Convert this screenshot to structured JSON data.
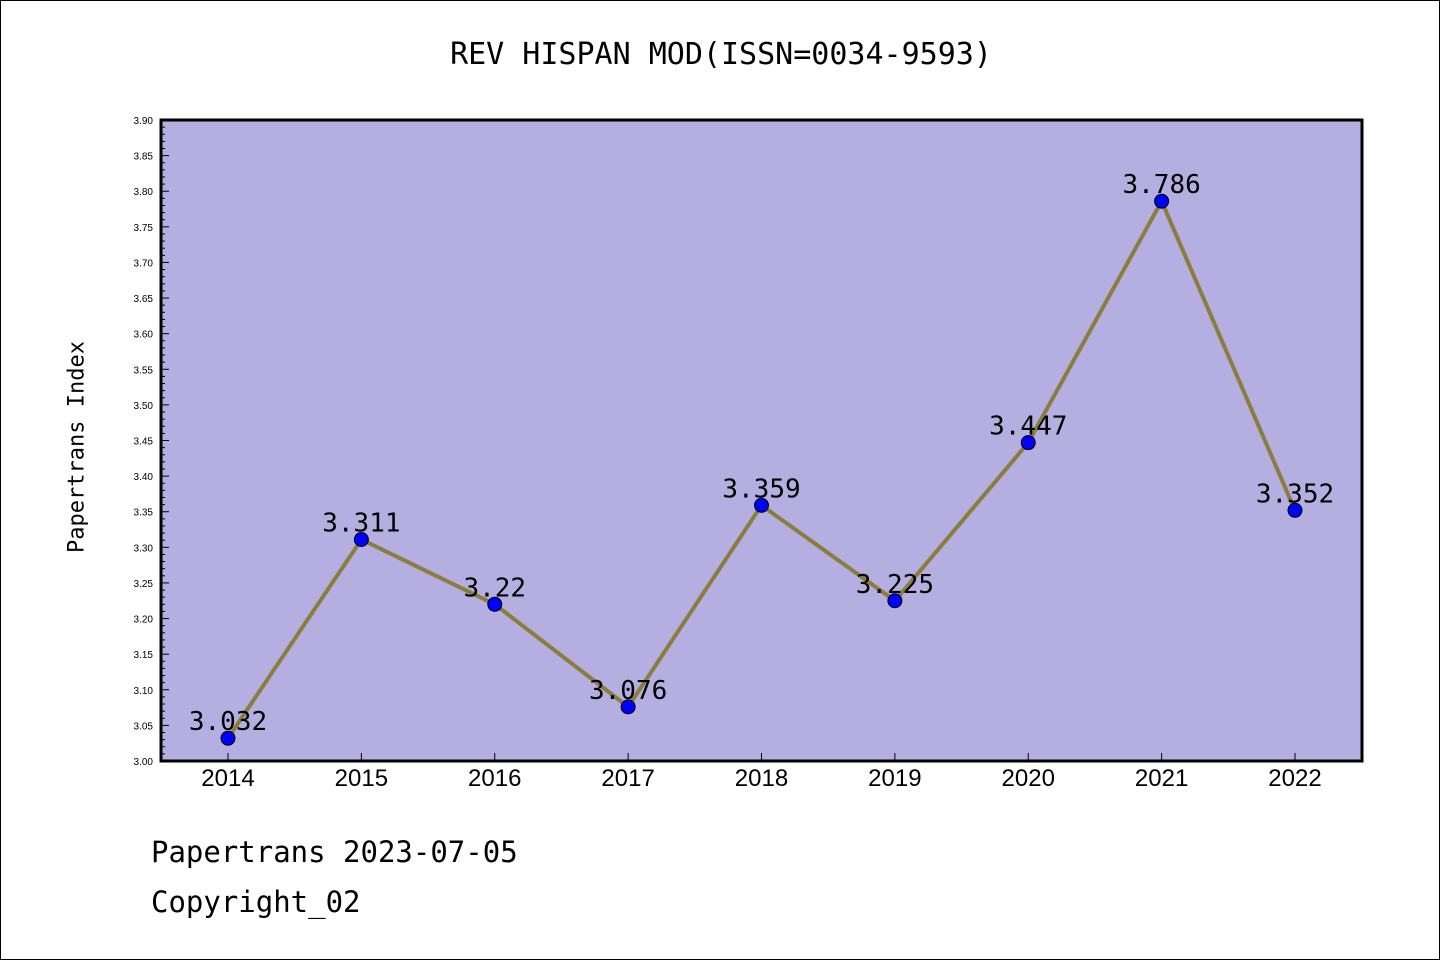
{
  "colors": {
    "plot_background": "#b5aee1",
    "line": "#8b7d3c",
    "marker": "#0000ff",
    "frame": "#000000"
  },
  "chart_data": {
    "type": "line",
    "title": "REV HISPAN MOD(ISSN=0034-9593)",
    "xlabel": "",
    "ylabel": "Papertrans Index",
    "categories": [
      "2014",
      "2015",
      "2016",
      "2017",
      "2018",
      "2019",
      "2020",
      "2021",
      "2022"
    ],
    "values": [
      3.032,
      3.311,
      3.22,
      3.076,
      3.359,
      3.225,
      3.447,
      3.786,
      3.352
    ],
    "data_labels": [
      "3.032",
      "3.311",
      "3.22",
      "3.076",
      "3.359",
      "3.225",
      "3.447",
      "3.786",
      "3.352"
    ],
    "ylim": [
      3.0,
      3.9
    ],
    "y_ticks": [
      "3.00",
      "3.05",
      "3.10",
      "3.15",
      "3.20",
      "3.25",
      "3.30",
      "3.35",
      "3.40",
      "3.45",
      "3.50",
      "3.55",
      "3.60",
      "3.65",
      "3.70",
      "3.75",
      "3.80",
      "3.85",
      "3.90"
    ],
    "grid": false,
    "legend": "none"
  },
  "footer": {
    "date_line": "Papertrans 2023-07-05",
    "copyright": "Copyright_02"
  }
}
